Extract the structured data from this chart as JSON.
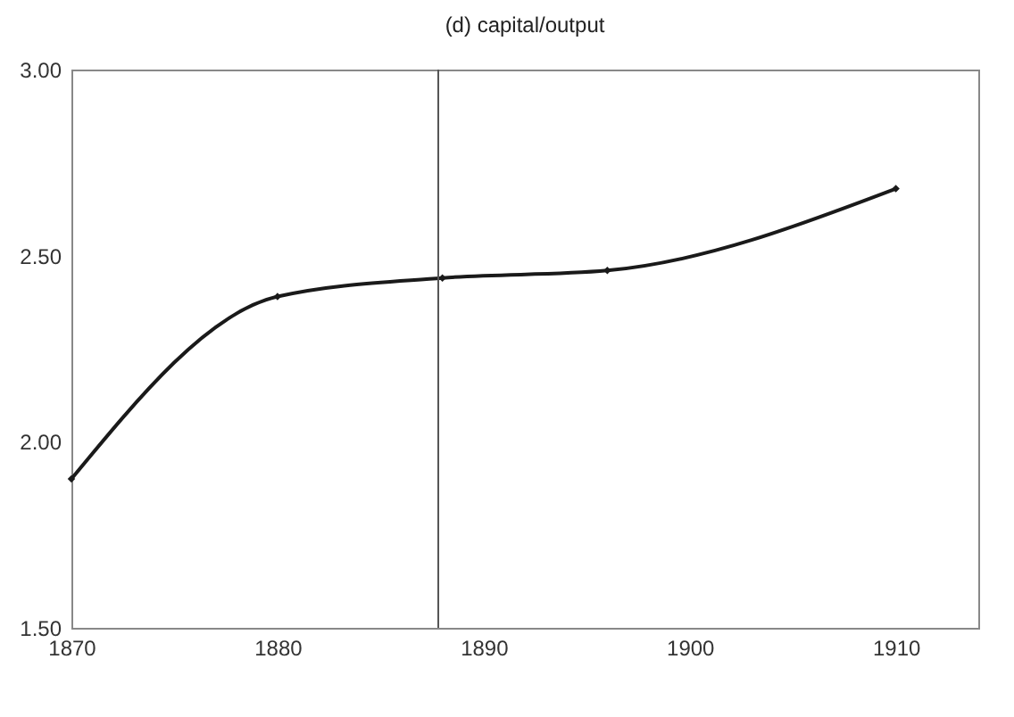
{
  "chart_data": {
    "type": "line",
    "title": "(d) capital/output",
    "x": [
      1870,
      1880,
      1888,
      1896,
      1910
    ],
    "series": [
      {
        "color": "#1a1a1a",
        "values": [
          1.9,
          2.39,
          2.44,
          2.46,
          2.68
        ]
      }
    ],
    "xlim": [
      1870,
      1914
    ],
    "xticks": [
      1870,
      1880,
      1890,
      1900,
      1910
    ],
    "ylim": [
      1.5,
      3.0
    ],
    "yticks": [
      {
        "value": 1.5,
        "label": "1.50"
      },
      {
        "value": 2.0,
        "label": "2.00"
      },
      {
        "value": 2.5,
        "label": "2.50"
      },
      {
        "value": 3.0,
        "label": "3.00"
      }
    ],
    "ref_lines": [
      {
        "axis": "x",
        "value": 1887.8,
        "color": "#555555"
      }
    ],
    "grid": false,
    "marker": "diamond",
    "line_style": "solid"
  }
}
